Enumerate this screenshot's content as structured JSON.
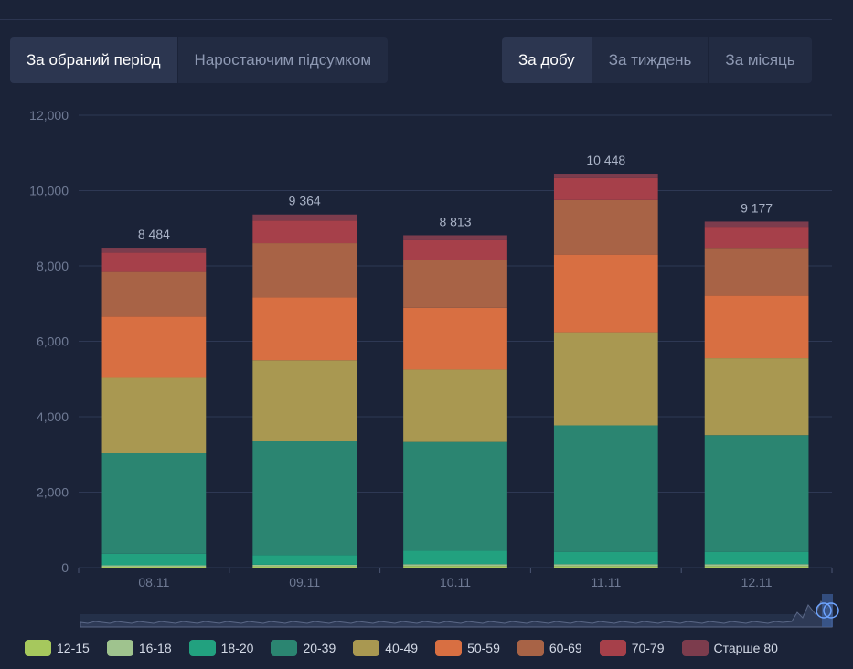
{
  "tabs_left": [
    {
      "label": "За обраний період",
      "active": true
    },
    {
      "label": "Наростаючим підсумком",
      "active": false
    }
  ],
  "tabs_right": [
    {
      "label": "За добу",
      "active": true
    },
    {
      "label": "За тиждень",
      "active": false
    },
    {
      "label": "За місяць",
      "active": false
    }
  ],
  "colors": {
    "background": "#1b2338",
    "grid": "#2e3854",
    "axis_text": "#6f7a94",
    "total_label": "#aab3c7"
  },
  "chart_data": {
    "type": "bar",
    "stacked": true,
    "categories": [
      "08.11",
      "09.11",
      "10.11",
      "11.11",
      "12.11"
    ],
    "ylim": [
      0,
      12000
    ],
    "yticks": [
      0,
      2000,
      4000,
      6000,
      8000,
      10000,
      12000
    ],
    "ytick_labels": [
      "0",
      "2,000",
      "4,000",
      "6,000",
      "8,000",
      "10,000",
      "12,000"
    ],
    "grid": true,
    "legend_position": "bottom",
    "totals": [
      8484,
      9364,
      8813,
      10448,
      9177
    ],
    "total_labels": [
      "8 484",
      "9 364",
      "8 813",
      "10 448",
      "9 177"
    ],
    "series": [
      {
        "name": "12-15",
        "color": "#a6c85d",
        "values": [
          25,
          35,
          45,
          40,
          40
        ]
      },
      {
        "name": "16-18",
        "color": "#9fc38e",
        "values": [
          35,
          40,
          45,
          50,
          50
        ]
      },
      {
        "name": "18-20",
        "color": "#22a17f",
        "values": [
          310,
          260,
          360,
          330,
          330
        ]
      },
      {
        "name": "20-39",
        "color": "#2b8571",
        "values": [
          2660,
          3020,
          2880,
          3350,
          3090
        ]
      },
      {
        "name": "40-49",
        "color": "#a99851",
        "values": [
          2000,
          2140,
          1920,
          2470,
          2040
        ]
      },
      {
        "name": "50-59",
        "color": "#d86f42",
        "values": [
          1630,
          1670,
          1640,
          2060,
          1660
        ]
      },
      {
        "name": "60-69",
        "color": "#a86346",
        "values": [
          1180,
          1440,
          1260,
          1450,
          1270
        ]
      },
      {
        "name": "70-79",
        "color": "#a6404a",
        "values": [
          510,
          600,
          530,
          580,
          560
        ]
      },
      {
        "name": "Старше 80",
        "color": "#7c3c4d",
        "values": [
          134,
          159,
          133,
          118,
          137
        ]
      }
    ]
  }
}
